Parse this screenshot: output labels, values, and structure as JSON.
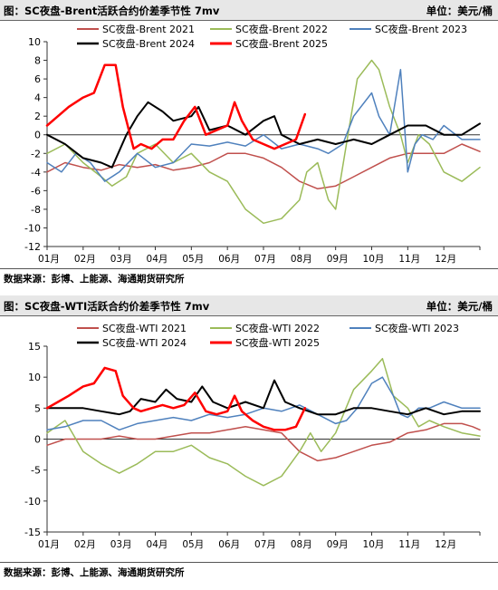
{
  "charts": [
    {
      "header": {
        "title": "图：SC夜盘-Brent活跃合约价差季节性 7mv",
        "unit": "单位：美元/桶"
      },
      "source": "数据来源：彭博、上能源、海通期货研究所"
    },
    {
      "header": {
        "title": "图：SC夜盘-WTI活跃合约价差季节性 7mv",
        "unit": "单位：美元/桶"
      },
      "source": "数据来源：彭博、上能源、海通期货研究所"
    }
  ],
  "chart_data": [
    {
      "type": "line",
      "title": "图：SC夜盘-Brent活跃合约价差季节性 7mv",
      "unit": "单位：美元/桶",
      "xticks": [
        "01月",
        "02月",
        "03月",
        "04月",
        "05月",
        "06月",
        "07月",
        "08月",
        "09月",
        "10月",
        "11月",
        "12月"
      ],
      "xlim": [
        0,
        12
      ],
      "ylim": [
        -12,
        10
      ],
      "yticks": [
        10,
        8,
        6,
        4,
        2,
        0,
        -2,
        -4,
        -6,
        -8,
        -10,
        -12
      ],
      "legend_position": "top",
      "series": [
        {
          "name": "SC夜盘-Brent 2021",
          "color": "#c0504d",
          "width": 1.5,
          "x": [
            0,
            0.5,
            1,
            1.5,
            2,
            2.5,
            3,
            3.5,
            4,
            4.5,
            5,
            5.5,
            6,
            6.5,
            7,
            7.5,
            8,
            8.5,
            9,
            9.5,
            10,
            10.5,
            11,
            11.5,
            12
          ],
          "y": [
            -4,
            -3,
            -3.5,
            -3.8,
            -3.2,
            -3.5,
            -3.2,
            -3.8,
            -3.5,
            -3,
            -2,
            -2,
            -2.5,
            -3.5,
            -5,
            -5.8,
            -5.5,
            -4.5,
            -3.5,
            -2.5,
            -2,
            -2,
            -2,
            -1,
            -1.8
          ]
        },
        {
          "name": "SC夜盘-Brent 2022",
          "color": "#9bbb59",
          "width": 1.5,
          "x": [
            0,
            0.5,
            1,
            1.5,
            1.8,
            2.2,
            2.5,
            3,
            3.5,
            4,
            4.5,
            5,
            5.5,
            6,
            6.5,
            7,
            7.2,
            7.5,
            7.8,
            8,
            8.3,
            8.6,
            9,
            9.2,
            9.5,
            9.8,
            10,
            10.3,
            10.6,
            11,
            11.5,
            12
          ],
          "y": [
            -2,
            -1,
            -3,
            -4.5,
            -5.5,
            -4.5,
            -2,
            -1,
            -3,
            -2,
            -4,
            -5,
            -8,
            -9.5,
            -9,
            -7,
            -4,
            -3,
            -7,
            -8,
            -1,
            6,
            8,
            7,
            3,
            0,
            -3,
            0,
            -1,
            -4,
            -5,
            -3.5
          ]
        },
        {
          "name": "SC夜盘-Brent 2023",
          "color": "#4f81bd",
          "width": 1.5,
          "x": [
            0,
            0.4,
            0.8,
            1.2,
            1.6,
            2,
            2.5,
            3,
            3.5,
            4,
            4.5,
            5,
            5.5,
            6,
            6.5,
            7,
            7.5,
            7.8,
            8.2,
            8.5,
            9,
            9.2,
            9.5,
            9.8,
            10,
            10.2,
            10.4,
            10.7,
            11,
            11.5,
            12
          ],
          "y": [
            -3,
            -4,
            -2,
            -3,
            -5,
            -4,
            -2,
            -3.5,
            -3,
            -1,
            -1.2,
            -0.8,
            -1.2,
            0,
            -1.5,
            -1,
            -1.5,
            -2,
            -1,
            2,
            4.5,
            2,
            0,
            7,
            -4,
            -1,
            0,
            -0.5,
            1,
            -0.5,
            -0.5
          ]
        },
        {
          "name": "SC夜盘-Brent 2024",
          "color": "#000000",
          "width": 2,
          "x": [
            0,
            0.5,
            1,
            1.5,
            1.8,
            2.2,
            2.5,
            2.8,
            3.2,
            3.5,
            4,
            4.2,
            4.5,
            5,
            5.5,
            6,
            6.3,
            6.5,
            7,
            7.5,
            8,
            8.5,
            9,
            9.5,
            10,
            10.5,
            11,
            11.5,
            12
          ],
          "y": [
            0,
            -1,
            -2.5,
            -3,
            -3.5,
            0,
            2,
            3.5,
            2.5,
            1.5,
            2,
            3,
            0.5,
            1,
            0,
            1.5,
            2,
            0,
            -1,
            -0.5,
            -1,
            -0.5,
            -1,
            0,
            1,
            1,
            0,
            0,
            1.2
          ]
        },
        {
          "name": "SC夜盘-Brent 2025",
          "color": "#ff0000",
          "width": 2.5,
          "x": [
            0,
            0.3,
            0.6,
            1,
            1.3,
            1.6,
            1.9,
            2.1,
            2.4,
            2.6,
            2.9,
            3.2,
            3.5,
            3.8,
            4.1,
            4.4,
            4.7,
            5,
            5.2,
            5.4,
            5.7,
            6,
            6.3,
            6.6,
            6.9,
            7.15
          ],
          "y": [
            1,
            2,
            3,
            4,
            4.5,
            7.5,
            7.5,
            3,
            -1.5,
            -1,
            -1.5,
            -0.5,
            -0.5,
            1.5,
            3,
            0,
            0.5,
            1,
            3.5,
            1.5,
            -0.5,
            -1,
            -1.5,
            -1,
            -0.5,
            2.2
          ]
        }
      ]
    },
    {
      "type": "line",
      "title": "图：SC夜盘-WTI活跃合约价差季节性 7mv",
      "unit": "单位：美元/桶",
      "xticks": [
        "01月",
        "02月",
        "03月",
        "04月",
        "05月",
        "06月",
        "07月",
        "08月",
        "09月",
        "10月",
        "11月",
        "12月"
      ],
      "xlim": [
        0,
        12
      ],
      "ylim": [
        -15,
        15
      ],
      "yticks": [
        15,
        10,
        5,
        0,
        -5,
        -10,
        -15
      ],
      "legend_position": "top",
      "series": [
        {
          "name": "SC夜盘-WTI 2021",
          "color": "#c0504d",
          "width": 1.5,
          "x": [
            0,
            0.5,
            1,
            1.5,
            2,
            2.5,
            3,
            3.5,
            4,
            4.5,
            5,
            5.5,
            6,
            6.5,
            7,
            7.5,
            8,
            8.5,
            9,
            9.5,
            10,
            10.5,
            11,
            11.5,
            11.8,
            12
          ],
          "y": [
            -1,
            0,
            0,
            0,
            0.5,
            0,
            0,
            0.5,
            1,
            1,
            1.5,
            2,
            1.5,
            1,
            -2,
            -3.5,
            -3,
            -2,
            -1,
            -0.5,
            1,
            1.5,
            2.5,
            2.5,
            2,
            1.5
          ]
        },
        {
          "name": "SC夜盘-WTI 2022",
          "color": "#9bbb59",
          "width": 1.5,
          "x": [
            0,
            0.5,
            1,
            1.5,
            2,
            2.5,
            3,
            3.5,
            4,
            4.5,
            5,
            5.5,
            6,
            6.5,
            7,
            7.3,
            7.6,
            8,
            8.5,
            9,
            9.3,
            9.6,
            10,
            10.3,
            10.6,
            11,
            11.5,
            12
          ],
          "y": [
            1,
            3,
            -2,
            -4,
            -5.5,
            -4,
            -2,
            -2,
            -1,
            -3,
            -4,
            -6,
            -7.5,
            -6,
            -2,
            1,
            -2,
            1,
            8,
            11,
            13,
            7,
            5,
            2,
            3,
            2,
            1,
            0.5
          ]
        },
        {
          "name": "SC夜盘-WTI 2023",
          "color": "#4f81bd",
          "width": 1.5,
          "x": [
            0,
            0.5,
            1,
            1.5,
            2,
            2.5,
            3,
            3.5,
            4,
            4.5,
            5,
            5.5,
            6,
            6.5,
            7,
            7.5,
            8,
            8.3,
            8.6,
            9,
            9.3,
            9.6,
            9.8,
            10,
            10.3,
            10.6,
            11,
            11.5,
            12
          ],
          "y": [
            1.5,
            2,
            3,
            3,
            1.5,
            2.5,
            3,
            3.5,
            3,
            4,
            3.5,
            4,
            5,
            4.5,
            5.5,
            4,
            2.5,
            3,
            5,
            9,
            10,
            7,
            4,
            3.5,
            5,
            5,
            6,
            5,
            5
          ]
        },
        {
          "name": "SC夜盘-WTI 2024",
          "color": "#000000",
          "width": 2,
          "x": [
            0,
            0.5,
            1,
            1.5,
            2,
            2.3,
            2.6,
            3,
            3.3,
            3.6,
            4,
            4.3,
            4.6,
            5,
            5.5,
            6,
            6.3,
            6.6,
            7,
            7.5,
            8,
            8.5,
            9,
            9.5,
            10,
            10.5,
            11,
            11.5,
            12
          ],
          "y": [
            5,
            5,
            5,
            4.5,
            4,
            4.5,
            6.5,
            6,
            8,
            6.5,
            6,
            8.5,
            6,
            5,
            6,
            5,
            9.5,
            6,
            5,
            4,
            4,
            5,
            5,
            4.5,
            4,
            5,
            4,
            4.5,
            4.5
          ]
        },
        {
          "name": "SC夜盘-WTI 2025",
          "color": "#ff0000",
          "width": 2.5,
          "x": [
            0,
            0.3,
            0.6,
            1,
            1.3,
            1.6,
            1.9,
            2.1,
            2.4,
            2.6,
            2.9,
            3.2,
            3.5,
            3.8,
            4.1,
            4.4,
            4.7,
            5,
            5.2,
            5.4,
            5.7,
            6,
            6.3,
            6.6,
            6.9,
            7.15
          ],
          "y": [
            5,
            6,
            7,
            8.5,
            9,
            11.5,
            11,
            7,
            5,
            4.5,
            5,
            5.5,
            5,
            5.5,
            7.5,
            4.5,
            4,
            4.5,
            7,
            4.5,
            3,
            2,
            1.5,
            1.5,
            2,
            5
          ]
        }
      ]
    }
  ]
}
